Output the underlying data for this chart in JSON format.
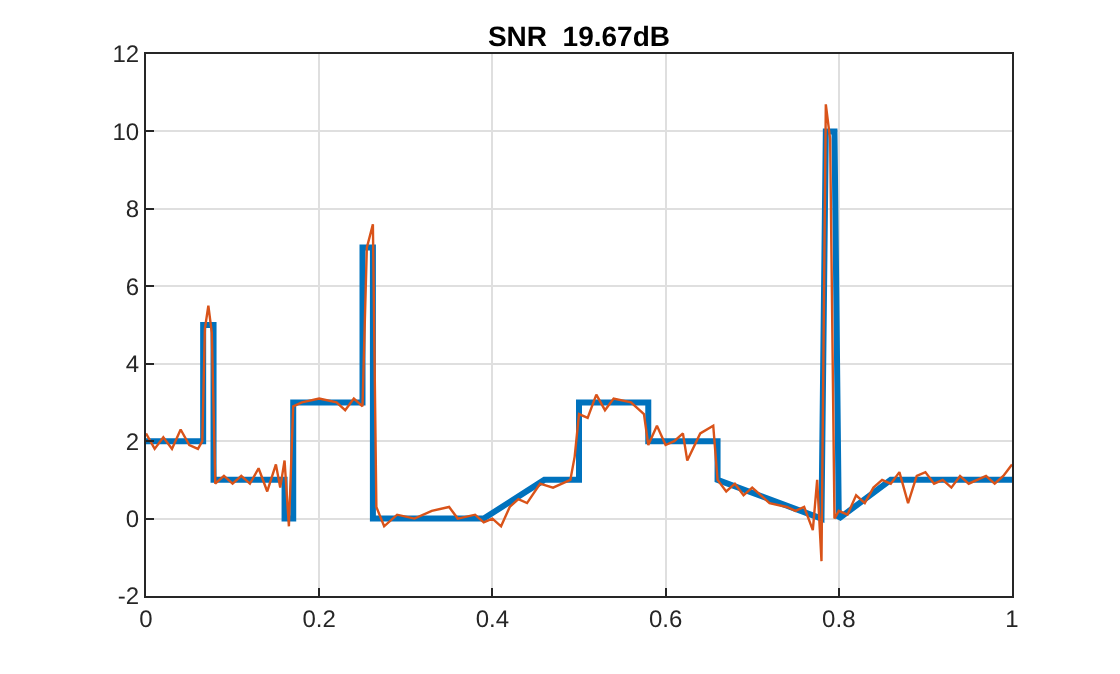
{
  "chart_data": {
    "type": "line",
    "title": "SNR  19.67dB",
    "xlim": [
      0,
      1
    ],
    "ylim": [
      -2,
      12
    ],
    "xticks": [
      0,
      0.2,
      0.4,
      0.6,
      0.8,
      1
    ],
    "yticks": [
      -2,
      0,
      2,
      4,
      6,
      8,
      10,
      12
    ],
    "grid": true,
    "marker": "none",
    "line_style": "solid",
    "series": [
      {
        "color": "#0072bd",
        "x": [
          0,
          0.066,
          0.066,
          0.078,
          0.078,
          0.16,
          0.16,
          0.17,
          0.17,
          0.25,
          0.25,
          0.262,
          0.262,
          0.39,
          0.46,
          0.5,
          0.5,
          0.58,
          0.58,
          0.66,
          0.66,
          0.78,
          0.785,
          0.795,
          0.8,
          0.86,
          1
        ],
        "values": [
          2,
          2,
          5,
          5,
          1,
          1,
          0,
          0,
          3,
          3,
          7,
          7,
          0,
          0,
          1,
          1,
          3,
          3,
          2,
          2,
          1,
          0,
          10,
          10,
          0,
          1,
          1
        ]
      },
      {
        "color": "#d95319",
        "x": [
          0,
          0.01,
          0.02,
          0.03,
          0.04,
          0.05,
          0.06,
          0.065,
          0.068,
          0.072,
          0.076,
          0.08,
          0.09,
          0.1,
          0.11,
          0.12,
          0.13,
          0.14,
          0.15,
          0.155,
          0.16,
          0.165,
          0.17,
          0.18,
          0.2,
          0.22,
          0.23,
          0.24,
          0.25,
          0.255,
          0.262,
          0.266,
          0.275,
          0.29,
          0.31,
          0.33,
          0.35,
          0.36,
          0.38,
          0.39,
          0.4,
          0.41,
          0.42,
          0.43,
          0.44,
          0.455,
          0.47,
          0.49,
          0.495,
          0.5,
          0.51,
          0.52,
          0.53,
          0.54,
          0.56,
          0.575,
          0.58,
          0.59,
          0.6,
          0.61,
          0.62,
          0.625,
          0.64,
          0.655,
          0.66,
          0.67,
          0.68,
          0.69,
          0.7,
          0.72,
          0.74,
          0.75,
          0.76,
          0.77,
          0.775,
          0.78,
          0.785,
          0.79,
          0.795,
          0.8,
          0.81,
          0.82,
          0.83,
          0.84,
          0.85,
          0.86,
          0.87,
          0.88,
          0.89,
          0.9,
          0.91,
          0.92,
          0.93,
          0.94,
          0.95,
          0.97,
          0.98,
          0.99,
          1
        ],
        "values": [
          2.2,
          1.8,
          2.1,
          1.8,
          2.3,
          1.9,
          1.8,
          2.0,
          4.9,
          5.5,
          4.8,
          0.9,
          1.1,
          0.9,
          1.1,
          0.9,
          1.3,
          0.7,
          1.4,
          0.8,
          1.5,
          -0.2,
          2.9,
          3.0,
          3.1,
          3.0,
          2.8,
          3.1,
          2.9,
          7.0,
          7.6,
          0.3,
          -0.2,
          0.1,
          0.0,
          0.2,
          0.3,
          0.0,
          0.1,
          -0.1,
          0.0,
          -0.2,
          0.3,
          0.5,
          0.4,
          0.9,
          0.8,
          1.0,
          1.6,
          2.7,
          2.6,
          3.2,
          2.8,
          3.1,
          3.0,
          2.7,
          1.9,
          2.4,
          1.9,
          2.0,
          2.2,
          1.5,
          2.2,
          2.4,
          1.0,
          0.7,
          0.9,
          0.6,
          0.8,
          0.4,
          0.3,
          0.2,
          0.3,
          -0.3,
          1.0,
          -1.1,
          10.7,
          9.8,
          0.0,
          0.2,
          0.1,
          0.6,
          0.4,
          0.8,
          1.0,
          0.9,
          1.2,
          0.4,
          1.1,
          1.2,
          0.9,
          1.0,
          0.8,
          1.1,
          0.9,
          1.1,
          0.9,
          1.1,
          1.4
        ]
      }
    ]
  }
}
